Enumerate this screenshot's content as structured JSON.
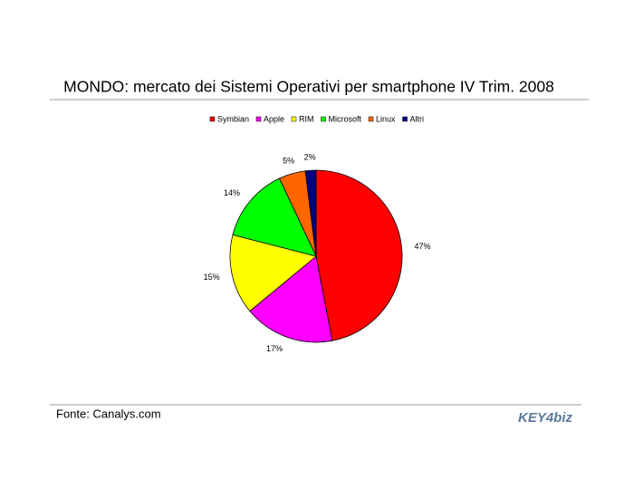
{
  "chart_data": {
    "type": "pie",
    "title": "MONDO: mercato dei Sistemi Operativi per smartphone IV Trim. 2008",
    "categories": [
      "Symbian",
      "Apple",
      "RIM",
      "Microsoft",
      "Linux",
      "Altri"
    ],
    "values": [
      47,
      17,
      15,
      14,
      5,
      2
    ],
    "value_labels": [
      "47%",
      "17%",
      "15%",
      "14%",
      "5%",
      "2%"
    ],
    "colors": [
      "#ff0000",
      "#ff00ff",
      "#ffff00",
      "#00ff00",
      "#ff6600",
      "#000080"
    ],
    "legend": "top"
  },
  "source": "Fonte: Canalys.com",
  "logo": "KEY4biz"
}
